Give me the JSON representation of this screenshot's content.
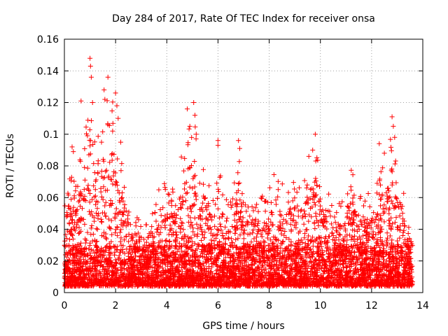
{
  "chart_data": {
    "type": "scatter",
    "title": "Day 284 of 2017, Rate Of TEC Index for receiver onsa",
    "xlabel": "GPS time / hours",
    "ylabel": "ROTI / TECUs",
    "xlim": [
      0,
      14
    ],
    "ylim": [
      0,
      0.16
    ],
    "xticks": [
      0,
      2,
      4,
      6,
      8,
      10,
      12,
      14
    ],
    "yticks": [
      0,
      0.02,
      0.04,
      0.06,
      0.08,
      0.1,
      0.12,
      0.14,
      0.16
    ],
    "ytick_labels": [
      "0",
      "0.02",
      "0.04",
      "0.06",
      "0.08",
      "0.1",
      "0.12",
      "0.14",
      "0.16"
    ],
    "grid": true,
    "marker": "+",
    "color": "#ff0000",
    "x_data_end": 13.6,
    "envelope": [
      [
        0.0,
        0.062
      ],
      [
        0.2,
        0.075
      ],
      [
        0.4,
        0.07
      ],
      [
        0.6,
        0.085
      ],
      [
        0.8,
        0.095
      ],
      [
        1.0,
        0.145
      ],
      [
        1.2,
        0.1
      ],
      [
        1.4,
        0.105
      ],
      [
        1.6,
        0.125
      ],
      [
        1.8,
        0.125
      ],
      [
        2.0,
        0.12
      ],
      [
        2.2,
        0.09
      ],
      [
        2.4,
        0.072
      ],
      [
        2.6,
        0.055
      ],
      [
        2.8,
        0.05
      ],
      [
        3.0,
        0.045
      ],
      [
        3.2,
        0.045
      ],
      [
        3.4,
        0.05
      ],
      [
        3.6,
        0.06
      ],
      [
        3.8,
        0.075
      ],
      [
        4.0,
        0.07
      ],
      [
        4.2,
        0.065
      ],
      [
        4.4,
        0.07
      ],
      [
        4.6,
        0.09
      ],
      [
        4.8,
        0.108
      ],
      [
        5.0,
        0.12
      ],
      [
        5.2,
        0.1
      ],
      [
        5.4,
        0.085
      ],
      [
        5.6,
        0.075
      ],
      [
        5.8,
        0.07
      ],
      [
        6.0,
        0.09
      ],
      [
        6.2,
        0.065
      ],
      [
        6.4,
        0.065
      ],
      [
        6.6,
        0.065
      ],
      [
        6.8,
        0.095
      ],
      [
        7.0,
        0.06
      ],
      [
        7.2,
        0.06
      ],
      [
        7.4,
        0.06
      ],
      [
        7.6,
        0.06
      ],
      [
        7.8,
        0.065
      ],
      [
        8.0,
        0.07
      ],
      [
        8.2,
        0.078
      ],
      [
        8.4,
        0.07
      ],
      [
        8.6,
        0.07
      ],
      [
        8.8,
        0.072
      ],
      [
        9.0,
        0.08
      ],
      [
        9.2,
        0.07
      ],
      [
        9.4,
        0.075
      ],
      [
        9.6,
        0.09
      ],
      [
        9.8,
        0.1
      ],
      [
        10.0,
        0.075
      ],
      [
        10.2,
        0.07
      ],
      [
        10.4,
        0.065
      ],
      [
        10.6,
        0.06
      ],
      [
        10.8,
        0.055
      ],
      [
        11.0,
        0.07
      ],
      [
        11.2,
        0.08
      ],
      [
        11.4,
        0.07
      ],
      [
        11.6,
        0.06
      ],
      [
        11.8,
        0.065
      ],
      [
        12.0,
        0.06
      ],
      [
        12.2,
        0.08
      ],
      [
        12.4,
        0.09
      ],
      [
        12.6,
        0.085
      ],
      [
        12.8,
        0.11
      ],
      [
        13.0,
        0.08
      ],
      [
        13.2,
        0.075
      ],
      [
        13.4,
        0.045
      ],
      [
        13.6,
        0.04
      ]
    ],
    "peaks": [
      [
        1.0,
        0.148
      ],
      [
        1.02,
        0.143
      ],
      [
        1.05,
        0.136
      ],
      [
        1.1,
        0.12
      ],
      [
        0.65,
        0.121
      ],
      [
        1.55,
        0.128
      ],
      [
        1.58,
        0.122
      ],
      [
        1.7,
        0.136
      ],
      [
        1.7,
        0.106
      ],
      [
        2.0,
        0.126
      ],
      [
        2.05,
        0.118
      ],
      [
        2.1,
        0.11
      ],
      [
        2.2,
        0.095
      ],
      [
        4.8,
        0.116
      ],
      [
        4.9,
        0.105
      ],
      [
        5.05,
        0.12
      ],
      [
        5.1,
        0.112
      ],
      [
        5.15,
        0.1
      ],
      [
        6.0,
        0.096
      ],
      [
        6.0,
        0.093
      ],
      [
        6.8,
        0.096
      ],
      [
        6.85,
        0.091
      ],
      [
        9.8,
        0.1
      ],
      [
        9.7,
        0.09
      ],
      [
        12.8,
        0.111
      ],
      [
        12.85,
        0.105
      ],
      [
        12.9,
        0.098
      ],
      [
        12.3,
        0.094
      ],
      [
        12.5,
        0.088
      ],
      [
        0.3,
        0.092
      ],
      [
        0.35,
        0.089
      ],
      [
        0.9,
        0.099
      ],
      [
        1.45,
        0.095
      ]
    ]
  }
}
